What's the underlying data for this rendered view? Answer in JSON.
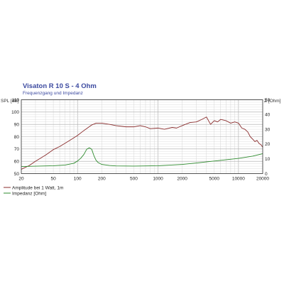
{
  "chart_data": {
    "type": "line",
    "title": "Visaton R 10 S - 4 Ohm",
    "subtitle": "Frequenzgang und Impedanz",
    "x_scale": "log",
    "xlim": [
      20,
      20000
    ],
    "x_ticks": [
      20,
      50,
      100,
      200,
      500,
      1000,
      2000,
      5000,
      10000,
      20000
    ],
    "y_left": {
      "label": "SPL [dB]",
      "lim": [
        50,
        110
      ],
      "ticks": [
        50,
        60,
        70,
        80,
        90,
        100,
        110
      ]
    },
    "y_right": {
      "label": "Z [Ohm]",
      "lim": [
        0,
        50
      ],
      "ticks": [
        0,
        10,
        20,
        30,
        40,
        50
      ]
    },
    "grid": true,
    "legend_position": "bottom-left",
    "series": [
      {
        "name": "Amplitude bei 1 Watt, 1m",
        "axis": "left",
        "color": "#8b2e2e",
        "x": [
          20,
          25,
          30,
          40,
          50,
          60,
          80,
          100,
          120,
          150,
          170,
          200,
          250,
          300,
          400,
          500,
          600,
          700,
          800,
          1000,
          1200,
          1500,
          1700,
          2000,
          2500,
          3000,
          3500,
          4000,
          4500,
          5000,
          5500,
          6000,
          7000,
          8000,
          9000,
          10000,
          11000,
          12000,
          13000,
          14000,
          15000,
          16000,
          17000,
          18000,
          19000,
          20000
        ],
        "y": [
          53.5,
          56.5,
          60,
          65,
          69.5,
          72,
          77,
          81,
          85,
          89.5,
          91,
          91,
          90,
          89,
          88,
          88,
          89,
          88,
          86.5,
          87,
          86,
          87.5,
          87,
          89,
          91.5,
          92,
          94,
          96,
          90,
          93,
          92,
          94,
          93,
          91,
          92,
          91,
          87,
          86,
          84,
          80,
          78,
          76,
          77,
          74.5,
          73.5,
          71.5
        ]
      },
      {
        "name": "Impedanz [Ohm]",
        "axis": "right",
        "color": "#2e8b2e",
        "x": [
          20,
          30,
          50,
          70,
          90,
          100,
          110,
          120,
          130,
          140,
          150,
          160,
          170,
          180,
          200,
          250,
          300,
          500,
          1000,
          2000,
          3000,
          5000,
          10000,
          15000,
          20000
        ],
        "y": [
          4.8,
          5,
          5.3,
          5.8,
          7,
          8.5,
          10.5,
          13,
          16.5,
          17.5,
          16.5,
          12,
          9,
          7.5,
          6.2,
          5.5,
          5.2,
          5.1,
          5.3,
          6.2,
          7.2,
          8.5,
          10.3,
          11.8,
          13.5
        ]
      }
    ]
  }
}
